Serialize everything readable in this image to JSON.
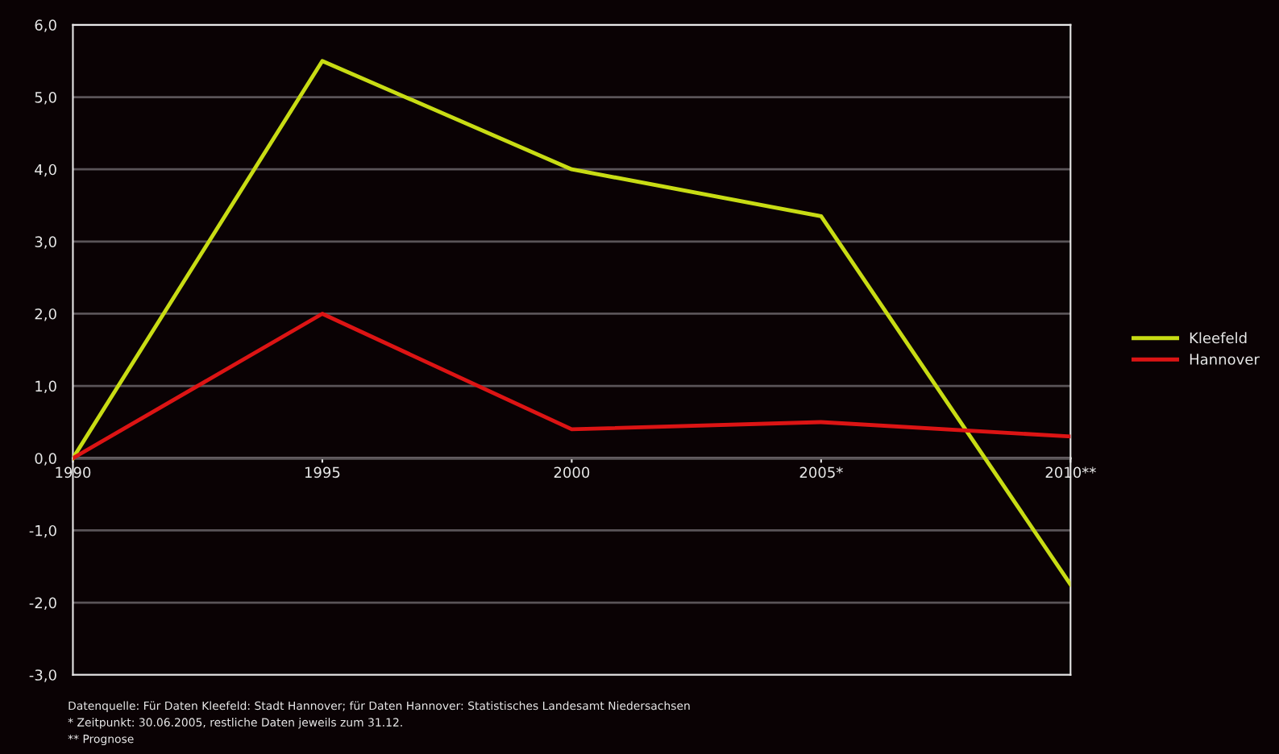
{
  "chart_data": {
    "type": "line",
    "categories": [
      "1990",
      "1995",
      "2000",
      "2005*",
      "2010**"
    ],
    "series": [
      {
        "name": "Kleefeld",
        "color": "#c8dc14",
        "values": [
          0.0,
          5.5,
          4.0,
          3.35,
          -1.75
        ]
      },
      {
        "name": "Hannover",
        "color": "#dc1414",
        "values": [
          0.0,
          2.0,
          0.4,
          0.5,
          0.3
        ]
      }
    ],
    "ylim": [
      -3,
      6
    ],
    "yticks": [
      {
        "value": -3,
        "label": "-3,0"
      },
      {
        "value": -2,
        "label": "-2,0"
      },
      {
        "value": -1,
        "label": "-1,0"
      },
      {
        "value": 0,
        "label": "0,0"
      },
      {
        "value": 1,
        "label": "1,0"
      },
      {
        "value": 2,
        "label": "2,0"
      },
      {
        "value": 3,
        "label": "3,0"
      },
      {
        "value": 4,
        "label": "4,0"
      },
      {
        "value": 5,
        "label": "5,0"
      },
      {
        "value": 6,
        "label": "6,0"
      }
    ],
    "grid": "y",
    "legend": "right",
    "marker": "none",
    "line_style": "solid",
    "annotations": [
      "Datenquelle: Für Daten Kleefeld: Stadt Hannover; für Daten Hannover: Statistisches Landesamt Niedersachsen",
      "* Zeitpunkt: 30.06.2005, restliche Daten jeweils zum 31.12.",
      "** Prognose"
    ]
  }
}
